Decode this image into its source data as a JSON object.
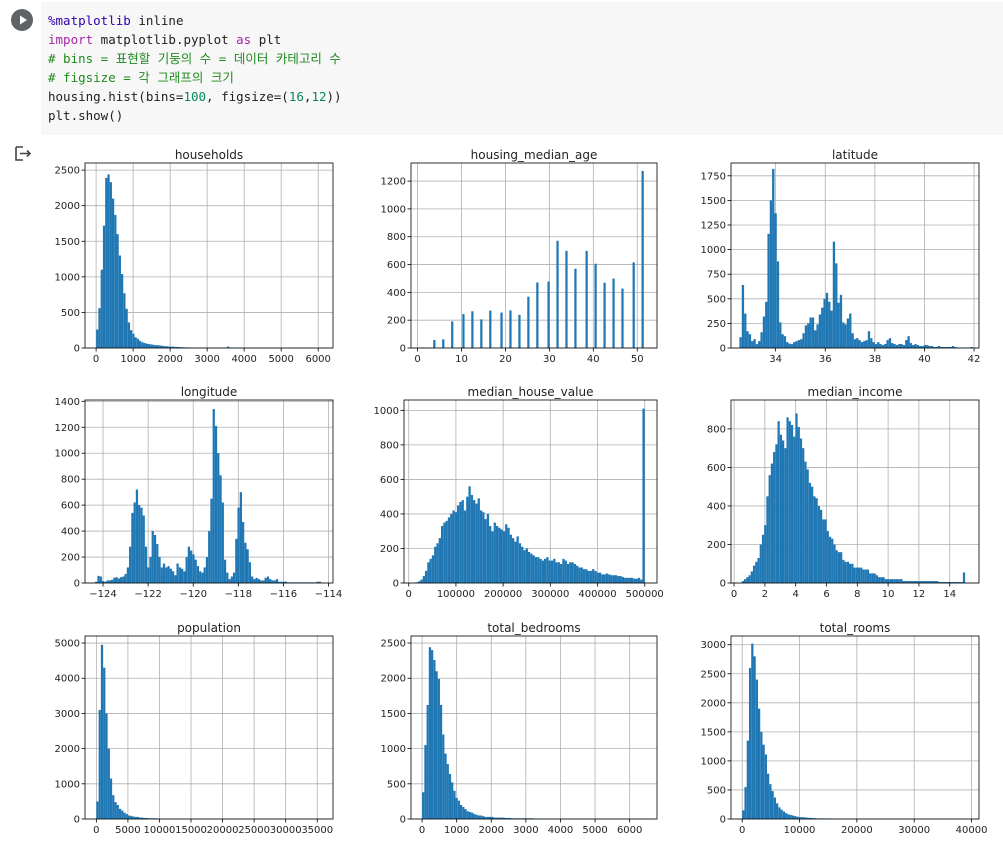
{
  "cell": {
    "run_button_icon": "play-icon",
    "output_icon": "output-redirect-icon",
    "code_lines": [
      [
        {
          "t": "%matplotlib",
          "c": "kw-magic"
        },
        {
          "t": " inline",
          "c": ""
        }
      ],
      [
        {
          "t": "import",
          "c": "kw"
        },
        {
          "t": " matplotlib.pyplot ",
          "c": ""
        },
        {
          "t": "as",
          "c": "kw"
        },
        {
          "t": " plt",
          "c": ""
        }
      ],
      [
        {
          "t": "# bins = 표현할 기둥의 수 = 데이터 카테고리 수",
          "c": "cm"
        }
      ],
      [
        {
          "t": "# figsize = 각 그래프의 크기",
          "c": "cm"
        }
      ],
      [
        {
          "t": "housing.hist(bins=",
          "c": ""
        },
        {
          "t": "100",
          "c": "num"
        },
        {
          "t": ", figsize=(",
          "c": ""
        },
        {
          "t": "16",
          "c": "num"
        },
        {
          "t": ",",
          "c": ""
        },
        {
          "t": "12",
          "c": "num"
        },
        {
          "t": "))",
          "c": ""
        }
      ],
      [
        {
          "t": "plt.show()",
          "c": ""
        }
      ]
    ]
  },
  "colors": {
    "bar": "#1f77b4",
    "grid": "#b0b0b0",
    "axis": "#000000"
  },
  "chart_data": [
    {
      "type": "bar",
      "title": "households",
      "xlim": [
        -300,
        6400
      ],
      "ylim": [
        0,
        2600
      ],
      "xticks": [
        0,
        1000,
        2000,
        3000,
        4000,
        5000,
        6000
      ],
      "xtick_labels": [
        "0",
        "1000",
        "2000",
        "3000",
        "4000",
        "5000",
        "6000"
      ],
      "yticks": [
        0,
        500,
        1000,
        1500,
        2000,
        2500
      ],
      "bin_start": 1,
      "bin_width": 61,
      "values": [
        260,
        560,
        1100,
        1720,
        2390,
        2440,
        2330,
        2100,
        1870,
        1600,
        1300,
        1040,
        770,
        550,
        360,
        250,
        200,
        150,
        130,
        100,
        80,
        70,
        60,
        55,
        50,
        45,
        40,
        40,
        35,
        30,
        25,
        25,
        20,
        20,
        18,
        15,
        14,
        12,
        10,
        9,
        8,
        8,
        7,
        6,
        5,
        5,
        5,
        4,
        4,
        3,
        3,
        3,
        3,
        2,
        3,
        2,
        2,
        2,
        20,
        2,
        1,
        1,
        1,
        1,
        0,
        1,
        0,
        1,
        1,
        1,
        0,
        0,
        1,
        0,
        0,
        0,
        1,
        0,
        0,
        0,
        1,
        0,
        0,
        0,
        0,
        0,
        0,
        0,
        0,
        0,
        0,
        0,
        0,
        0,
        0,
        0,
        0,
        0,
        0,
        1
      ]
    },
    {
      "type": "bar",
      "title": "housing_median_age",
      "xlim": [
        -1.5,
        54.5
      ],
      "ylim": [
        0,
        1330
      ],
      "xticks": [
        0,
        10,
        20,
        30,
        40,
        50
      ],
      "xtick_labels": [
        "0",
        "10",
        "20",
        "30",
        "40",
        "50"
      ],
      "yticks": [
        0,
        200,
        400,
        600,
        800,
        1000,
        1200
      ],
      "bin_start": 1,
      "bin_width": 0.51,
      "values": [
        4,
        0,
        0,
        0,
        0,
        58,
        0,
        0,
        0,
        62,
        0,
        0,
        0,
        191,
        0,
        0,
        0,
        0,
        244,
        0,
        0,
        0,
        264,
        0,
        0,
        0,
        206,
        0,
        0,
        0,
        269,
        0,
        0,
        0,
        0,
        255,
        0,
        0,
        0,
        270,
        0,
        0,
        0,
        238,
        0,
        0,
        0,
        369,
        0,
        0,
        0,
        471,
        0,
        0,
        0,
        0,
        478,
        0,
        0,
        0,
        771,
        0,
        0,
        0,
        698,
        0,
        0,
        0,
        570,
        0,
        0,
        0,
        0,
        698,
        0,
        0,
        0,
        606,
        0,
        0,
        0,
        469,
        0,
        0,
        0,
        499,
        0,
        0,
        0,
        427,
        0,
        0,
        0,
        0,
        616,
        0,
        0,
        0,
        1273
      ]
    },
    {
      "type": "bar",
      "title": "latitude",
      "xlim": [
        32.2,
        42.2
      ],
      "ylim": [
        0,
        1880
      ],
      "xticks": [
        34,
        36,
        38,
        40,
        42
      ],
      "xtick_labels": [
        "34",
        "36",
        "38",
        "40",
        "42"
      ],
      "yticks": [
        0,
        250,
        500,
        750,
        1000,
        1250,
        1500,
        1750
      ],
      "bin_start": 32.54,
      "bin_width": 0.0941,
      "values": [
        110,
        640,
        350,
        170,
        140,
        70,
        90,
        40,
        70,
        160,
        320,
        470,
        1160,
        1500,
        1820,
        1370,
        880,
        260,
        140,
        120,
        60,
        45,
        40,
        60,
        70,
        80,
        90,
        150,
        230,
        250,
        310,
        310,
        180,
        240,
        340,
        410,
        500,
        560,
        470,
        380,
        1080,
        860,
        460,
        540,
        260,
        240,
        300,
        350,
        150,
        90,
        100,
        80,
        60,
        70,
        80,
        170,
        100,
        60,
        40,
        60,
        40,
        30,
        40,
        80,
        100,
        50,
        40,
        30,
        40,
        40,
        30,
        80,
        120,
        50,
        30,
        40,
        30,
        20,
        20,
        30,
        30,
        20,
        20,
        10,
        10,
        20,
        10,
        10,
        10,
        10,
        10,
        20,
        10,
        5,
        5,
        5,
        5,
        5,
        5,
        10
      ]
    },
    {
      "type": "bar",
      "title": "longitude",
      "xlim": [
        -124.8,
        -113.8
      ],
      "ylim": [
        0,
        1410
      ],
      "xticks": [
        -124,
        -122,
        -120,
        -118,
        -116,
        -114
      ],
      "xtick_labels": [
        "−124",
        "−122",
        "−120",
        "−118",
        "−116",
        "−114"
      ],
      "yticks": [
        0,
        200,
        400,
        600,
        800,
        1000,
        1200,
        1400
      ],
      "bin_start": -124.35,
      "bin_width": 0.1002,
      "values": [
        10,
        55,
        50,
        15,
        10,
        20,
        20,
        25,
        40,
        45,
        35,
        45,
        50,
        70,
        120,
        280,
        540,
        620,
        720,
        600,
        580,
        520,
        280,
        120,
        200,
        400,
        370,
        300,
        200,
        120,
        150,
        120,
        130,
        110,
        90,
        60,
        150,
        120,
        110,
        90,
        200,
        280,
        250,
        220,
        180,
        130,
        90,
        80,
        120,
        200,
        400,
        650,
        1340,
        1210,
        1000,
        830,
        620,
        180,
        80,
        30,
        50,
        80,
        340,
        580,
        700,
        470,
        310,
        260,
        160,
        50,
        30,
        40,
        30,
        20,
        20,
        40,
        50,
        30,
        20,
        20,
        30,
        10,
        10,
        10,
        10,
        5,
        5,
        5,
        5,
        5,
        5,
        5,
        5,
        5,
        5,
        5,
        5,
        5,
        10,
        10
      ]
    },
    {
      "type": "bar",
      "title": "median_house_value",
      "xlim": [
        -10000,
        526000
      ],
      "ylim": [
        0,
        1060
      ],
      "xticks": [
        0,
        100000,
        200000,
        300000,
        400000,
        500000
      ],
      "xtick_labels": [
        "0",
        "100000",
        "200000",
        "300000",
        "400000",
        "500000"
      ],
      "yticks": [
        0,
        200,
        400,
        600,
        800,
        1000
      ],
      "bin_start": 14999,
      "bin_width": 4850,
      "values": [
        4,
        10,
        20,
        40,
        70,
        120,
        140,
        160,
        210,
        230,
        260,
        330,
        350,
        360,
        380,
        400,
        420,
        410,
        450,
        470,
        480,
        420,
        500,
        560,
        510,
        480,
        460,
        490,
        420,
        410,
        370,
        400,
        330,
        300,
        350,
        330,
        320,
        310,
        300,
        340,
        320,
        280,
        260,
        240,
        270,
        230,
        210,
        190,
        200,
        180,
        170,
        160,
        150,
        150,
        140,
        130,
        140,
        150,
        130,
        130,
        140,
        120,
        120,
        110,
        140,
        130,
        110,
        120,
        120,
        110,
        100,
        90,
        90,
        80,
        80,
        70,
        70,
        80,
        70,
        60,
        60,
        50,
        50,
        55,
        50,
        45,
        45,
        45,
        40,
        40,
        35,
        30,
        30,
        30,
        30,
        25,
        25,
        30,
        20,
        1010
      ]
    },
    {
      "type": "bar",
      "title": "median_income",
      "xlim": [
        -0.2,
        15.9
      ],
      "ylim": [
        0,
        950
      ],
      "xticks": [
        0,
        2,
        4,
        6,
        8,
        10,
        12,
        14
      ],
      "xtick_labels": [
        "0",
        "2",
        "4",
        "6",
        "8",
        "10",
        "12",
        "14"
      ],
      "yticks": [
        0,
        200,
        400,
        600,
        800
      ],
      "bin_start": 0.5,
      "bin_width": 0.145,
      "values": [
        10,
        20,
        30,
        40,
        60,
        90,
        110,
        130,
        200,
        250,
        300,
        450,
        560,
        620,
        680,
        720,
        840,
        770,
        740,
        700,
        860,
        840,
        820,
        760,
        880,
        810,
        750,
        700,
        630,
        590,
        520,
        500,
        450,
        440,
        400,
        380,
        330,
        330,
        270,
        240,
        230,
        200,
        170,
        160,
        160,
        120,
        110,
        110,
        100,
        100,
        80,
        80,
        80,
        80,
        70,
        70,
        70,
        50,
        50,
        50,
        40,
        30,
        30,
        30,
        20,
        20,
        20,
        20,
        20,
        20,
        20,
        20,
        10,
        10,
        10,
        10,
        10,
        10,
        10,
        10,
        10,
        10,
        10,
        10,
        10,
        10,
        10,
        10,
        5,
        5,
        5,
        5,
        5,
        5,
        5,
        5,
        5,
        5,
        5,
        55
      ]
    },
    {
      "type": "bar",
      "title": "population",
      "xlim": [
        -1800,
        37500
      ],
      "ylim": [
        0,
        5200
      ],
      "xticks": [
        0,
        5000,
        10000,
        15000,
        20000,
        25000,
        30000,
        35000
      ],
      "xtick_labels": [
        "0",
        "5000",
        "10000",
        "15000",
        "20000",
        "25000",
        "30000",
        "35000"
      ],
      "yticks": [
        0,
        1000,
        2000,
        3000,
        4000,
        5000
      ],
      "bin_start": 3,
      "bin_width": 356.8,
      "values": [
        500,
        3100,
        4950,
        4300,
        3000,
        2000,
        1150,
        680,
        480,
        400,
        290,
        240,
        180,
        140,
        100,
        90,
        70,
        60,
        60,
        40,
        40,
        30,
        30,
        20,
        20,
        20,
        20,
        10,
        10,
        10,
        10,
        10,
        10,
        10,
        5,
        5,
        5,
        5,
        5,
        5,
        5,
        5,
        5,
        5,
        5,
        5,
        5,
        5,
        5,
        5,
        5,
        5,
        5,
        5,
        5,
        5,
        5,
        5,
        5,
        5,
        5,
        5,
        5,
        5,
        5,
        5,
        5,
        5,
        5,
        5,
        5,
        5,
        5,
        5,
        5,
        5,
        5,
        5,
        5,
        5,
        5,
        5,
        5,
        5,
        5,
        5,
        5,
        5,
        5,
        5,
        5,
        5,
        5,
        5,
        5,
        5,
        5,
        5,
        5,
        5
      ]
    },
    {
      "type": "bar",
      "title": "total_bedrooms",
      "xlim": [
        -320,
        6790
      ],
      "ylim": [
        0,
        2600
      ],
      "xticks": [
        0,
        1000,
        2000,
        3000,
        4000,
        5000,
        6000
      ],
      "xtick_labels": [
        "0",
        "1000",
        "2000",
        "3000",
        "4000",
        "5000",
        "6000"
      ],
      "yticks": [
        0,
        500,
        1000,
        1500,
        2000,
        2500
      ],
      "bin_start": 1,
      "bin_width": 64.45,
      "values": [
        380,
        1050,
        1620,
        2440,
        2400,
        2260,
        2100,
        1990,
        1620,
        1200,
        930,
        780,
        640,
        520,
        400,
        300,
        260,
        200,
        170,
        140,
        110,
        100,
        90,
        70,
        60,
        50,
        50,
        40,
        30,
        30,
        30,
        30,
        20,
        20,
        20,
        20,
        20,
        15,
        15,
        15,
        10,
        10,
        10,
        10,
        10,
        10,
        10,
        10,
        10,
        10,
        5,
        5,
        5,
        5,
        5,
        5,
        5,
        5,
        5,
        5,
        5,
        5,
        5,
        5,
        5,
        5,
        5,
        5,
        5,
        5,
        5,
        5,
        5,
        5,
        5,
        5,
        5,
        5,
        5,
        5,
        5,
        5,
        5,
        5,
        5,
        5,
        5,
        5,
        5,
        5,
        5,
        5,
        5,
        5,
        5,
        5,
        5,
        5,
        5,
        5
      ]
    },
    {
      "type": "bar",
      "title": "total_rooms",
      "xlim": [
        -1950,
        41300
      ],
      "ylim": [
        0,
        3150
      ],
      "xticks": [
        0,
        10000,
        20000,
        30000,
        40000
      ],
      "xtick_labels": [
        "0",
        "10000",
        "20000",
        "30000",
        "40000"
      ],
      "yticks": [
        0,
        500,
        1000,
        1500,
        2000,
        2500,
        3000
      ],
      "bin_start": 2,
      "bin_width": 393.2,
      "values": [
        150,
        550,
        1350,
        2600,
        3020,
        2800,
        2400,
        1900,
        1500,
        1280,
        1110,
        780,
        600,
        480,
        370,
        270,
        200,
        160,
        130,
        100,
        80,
        70,
        60,
        50,
        40,
        35,
        30,
        30,
        25,
        20,
        20,
        15,
        15,
        10,
        10,
        10,
        10,
        10,
        10,
        5,
        5,
        5,
        5,
        5,
        5,
        5,
        5,
        5,
        5,
        5,
        5,
        5,
        5,
        5,
        5,
        5,
        5,
        5,
        5,
        5,
        5,
        5,
        5,
        5,
        5,
        5,
        5,
        5,
        5,
        5,
        5,
        5,
        5,
        5,
        5,
        5,
        5,
        5,
        5,
        5,
        5,
        5,
        5,
        5,
        5,
        5,
        5,
        5,
        5,
        5,
        5,
        5,
        5,
        5,
        5,
        5,
        5,
        5,
        5,
        5
      ]
    }
  ]
}
